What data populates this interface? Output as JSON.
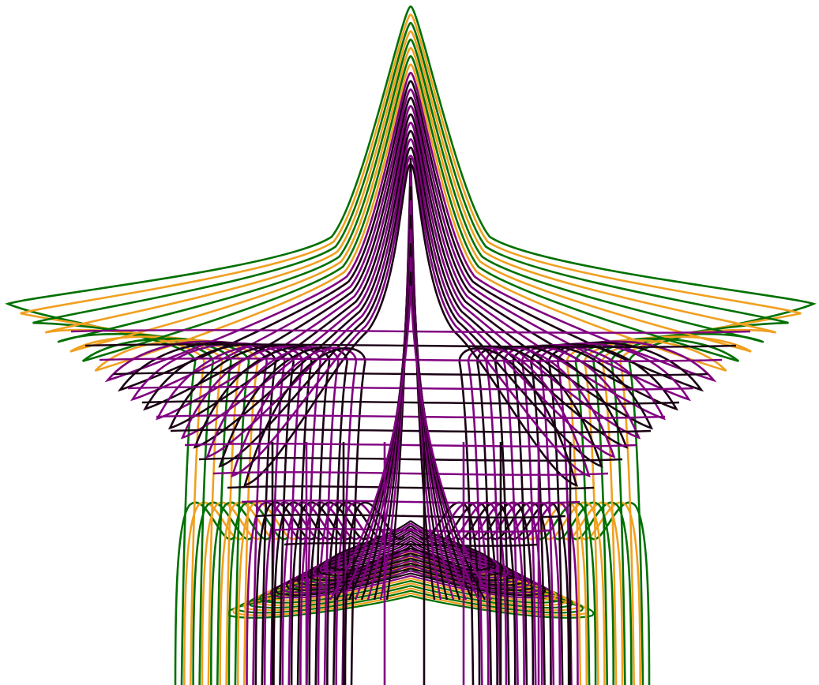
{
  "figure": {
    "description_free": true,
    "colors": {
      "background": "#ffffff",
      "orange": "#f0a020",
      "green": "#007000",
      "purple": "#800080",
      "black": "#1a0014"
    },
    "layers": [
      {
        "color_key": "green",
        "count": 5
      },
      {
        "color_key": "orange",
        "count": 5
      },
      {
        "color_key": "purple",
        "count": 6
      },
      {
        "color_key": "black",
        "count": 6
      }
    ]
  }
}
